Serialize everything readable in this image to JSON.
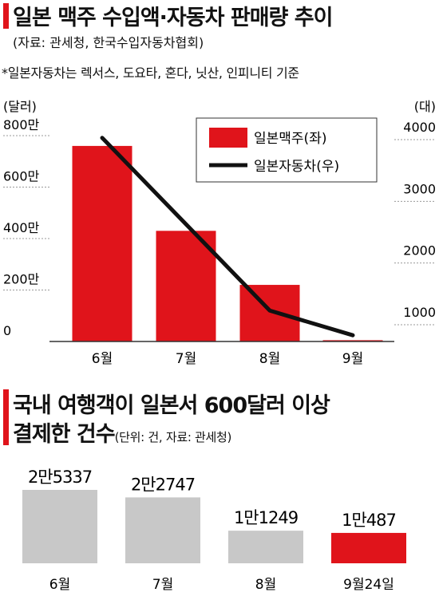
{
  "chart_data": [
    {
      "type": "bar+line",
      "title": "일본 맥주 수입액·자동차 판매량 추이",
      "subtitle": "(자료: 관세청, 한국수입자동차협회)",
      "note": "*일본자동차는 렉서스, 도요타, 혼다, 닛산, 인피니티 기준",
      "categories": [
        "6월",
        "7월",
        "8월",
        "9월"
      ],
      "y_left": {
        "unit": "(달러)",
        "ylim": [
          0,
          8000000
        ],
        "tick_values": [
          0,
          2000000,
          4000000,
          6000000,
          8000000
        ],
        "tick_labels": [
          "0",
          "200만",
          "400만",
          "600만",
          "800만"
        ]
      },
      "y_right": {
        "unit": "(대)",
        "tick_values": [
          1000,
          2000,
          3000,
          4000
        ],
        "tick_labels": [
          "1000",
          "2000",
          "3000",
          "4000"
        ]
      },
      "series": [
        {
          "name": "일본맥주(좌)",
          "kind": "bar",
          "axis": "left",
          "color": "#e0141b",
          "values": [
            7600000,
            4300000,
            2200000,
            50000
          ]
        },
        {
          "name": "일본자동차(우)",
          "kind": "line",
          "axis": "right",
          "color": "#111111",
          "values": [
            3900,
            2500,
            1100,
            700
          ]
        }
      ],
      "legend": {
        "position": "top-right"
      }
    },
    {
      "type": "bar",
      "title_line1": "국내 여행객이 일본서 600달러 이상",
      "title_line2": "결제한 건수",
      "title_note": "(단위: 건, 자료: 관세청)",
      "categories": [
        "6월",
        "7월",
        "8월",
        "9월24일"
      ],
      "values": [
        25337,
        22747,
        11249,
        10487
      ],
      "value_labels": [
        "2만5337",
        "2만2747",
        "1만1249",
        "1만487"
      ],
      "colors": [
        "#c8c8c8",
        "#c8c8c8",
        "#c8c8c8",
        "#e0141b"
      ]
    }
  ]
}
